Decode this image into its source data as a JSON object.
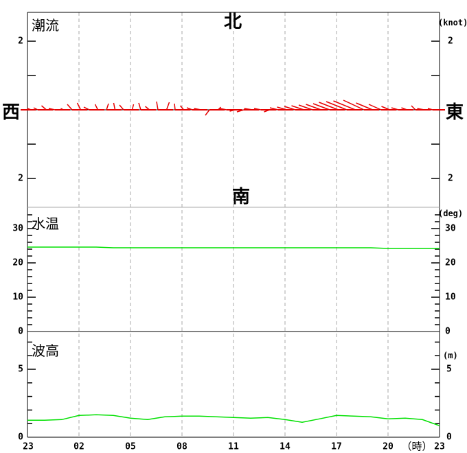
{
  "chart_data": {
    "type": "multi-panel-time-series",
    "description": "Tidal current stick plot, water temperature line, wave height line over 24 hours",
    "colors": {
      "stick_red": "#e60000",
      "line_green": "#00e000",
      "grid_gray": "#a8a8a8",
      "axis_black": "#000000"
    },
    "x_axis": {
      "tick_labels": [
        "23",
        "02",
        "05",
        "08",
        "11",
        "14",
        "17",
        "20",
        "23"
      ],
      "hour_unit_label": "（時）",
      "span_hours": 24,
      "gridline_hours_after_start": [
        3,
        6,
        9,
        12,
        15,
        18,
        21
      ]
    },
    "panels": [
      {
        "name": "tidal-current",
        "title": "潮流",
        "unit": "(knot)",
        "plot_type": "vector-stick",
        "compass": {
          "north": "北",
          "south": "南",
          "west": "西",
          "east": "東"
        },
        "ytick_label_top": "2",
        "ytick_label_bottom": "2",
        "yticks_knots": [
          2,
          1,
          -1,
          -2
        ],
        "stick_format": "[hours_after_23h, east_component_knots, north_component_knots]",
        "sticks": [
          [
            0.2,
            -0.1,
            0.04
          ],
          [
            0.6,
            -0.12,
            0.06
          ],
          [
            1.1,
            -0.14,
            0.12
          ],
          [
            1.6,
            -0.18,
            0.04
          ],
          [
            2.1,
            -0.08,
            0.04
          ],
          [
            2.6,
            -0.14,
            0.16
          ],
          [
            3.1,
            -0.1,
            0.2
          ],
          [
            3.6,
            -0.16,
            0.08
          ],
          [
            4.1,
            -0.08,
            0.16
          ],
          [
            4.6,
            0.06,
            0.18
          ],
          [
            5.1,
            -0.04,
            0.2
          ],
          [
            5.6,
            -0.12,
            0.14
          ],
          [
            6.1,
            0.04,
            0.16
          ],
          [
            6.6,
            -0.06,
            0.2
          ],
          [
            7.1,
            -0.12,
            0.1
          ],
          [
            7.6,
            -0.04,
            0.24
          ],
          [
            8.1,
            0.08,
            0.22
          ],
          [
            8.6,
            -0.02,
            0.18
          ],
          [
            9.1,
            -0.1,
            0.12
          ],
          [
            9.6,
            -0.16,
            0.06
          ],
          [
            10.1,
            -0.2,
            0.04
          ],
          [
            10.6,
            -0.12,
            -0.16
          ],
          [
            11.1,
            0.08,
            0.08
          ],
          [
            11.6,
            -0.2,
            0.04
          ],
          [
            12.1,
            -0.16,
            -0.04
          ],
          [
            12.6,
            -0.2,
            -0.06
          ],
          [
            13.1,
            -0.24,
            0.04
          ],
          [
            13.6,
            -0.2,
            0.04
          ],
          [
            14.1,
            -0.16,
            -0.06
          ],
          [
            14.6,
            -0.24,
            0.06
          ],
          [
            15.1,
            -0.28,
            0.08
          ],
          [
            15.6,
            -0.32,
            0.1
          ],
          [
            16.1,
            -0.36,
            0.12
          ],
          [
            16.6,
            -0.4,
            0.14
          ],
          [
            17.1,
            -0.44,
            0.16
          ],
          [
            17.6,
            -0.48,
            0.18
          ],
          [
            18.1,
            -0.56,
            0.22
          ],
          [
            18.6,
            -0.6,
            0.24
          ],
          [
            19.1,
            -0.64,
            0.26
          ],
          [
            19.6,
            -0.6,
            0.28
          ],
          [
            20.1,
            -0.48,
            0.2
          ],
          [
            20.6,
            -0.36,
            0.16
          ],
          [
            21.1,
            -0.24,
            0.1
          ],
          [
            21.6,
            -0.2,
            0.06
          ],
          [
            22.1,
            -0.16,
            0.06
          ],
          [
            22.6,
            -0.12,
            0.12
          ],
          [
            23.1,
            -0.2,
            0.04
          ],
          [
            23.6,
            -0.14,
            0.04
          ]
        ]
      },
      {
        "name": "water-temperature",
        "title": "水温",
        "unit": "(deg)",
        "plot_type": "line",
        "ytick_labels": [
          "30",
          "20",
          "10",
          "0"
        ],
        "ylim": [
          0,
          36
        ],
        "values_deg": [
          24.6,
          24.6,
          24.6,
          24.6,
          24.6,
          24.4,
          24.4,
          24.4,
          24.4,
          24.4,
          24.4,
          24.4,
          24.4,
          24.4,
          24.4,
          24.4,
          24.4,
          24.4,
          24.4,
          24.4,
          24.4,
          24.2,
          24.2,
          24.2,
          24.2
        ]
      },
      {
        "name": "wave-height",
        "title": "波高",
        "unit": "(m)",
        "plot_type": "line",
        "ytick_labels": [
          "5",
          "0"
        ],
        "ylim": [
          0,
          7.8
        ],
        "values_m": [
          1.25,
          1.25,
          1.3,
          1.6,
          1.65,
          1.6,
          1.4,
          1.3,
          1.5,
          1.55,
          1.55,
          1.5,
          1.45,
          1.4,
          1.45,
          1.3,
          1.1,
          1.35,
          1.6,
          1.55,
          1.5,
          1.35,
          1.4,
          1.3,
          0.85
        ]
      }
    ]
  }
}
